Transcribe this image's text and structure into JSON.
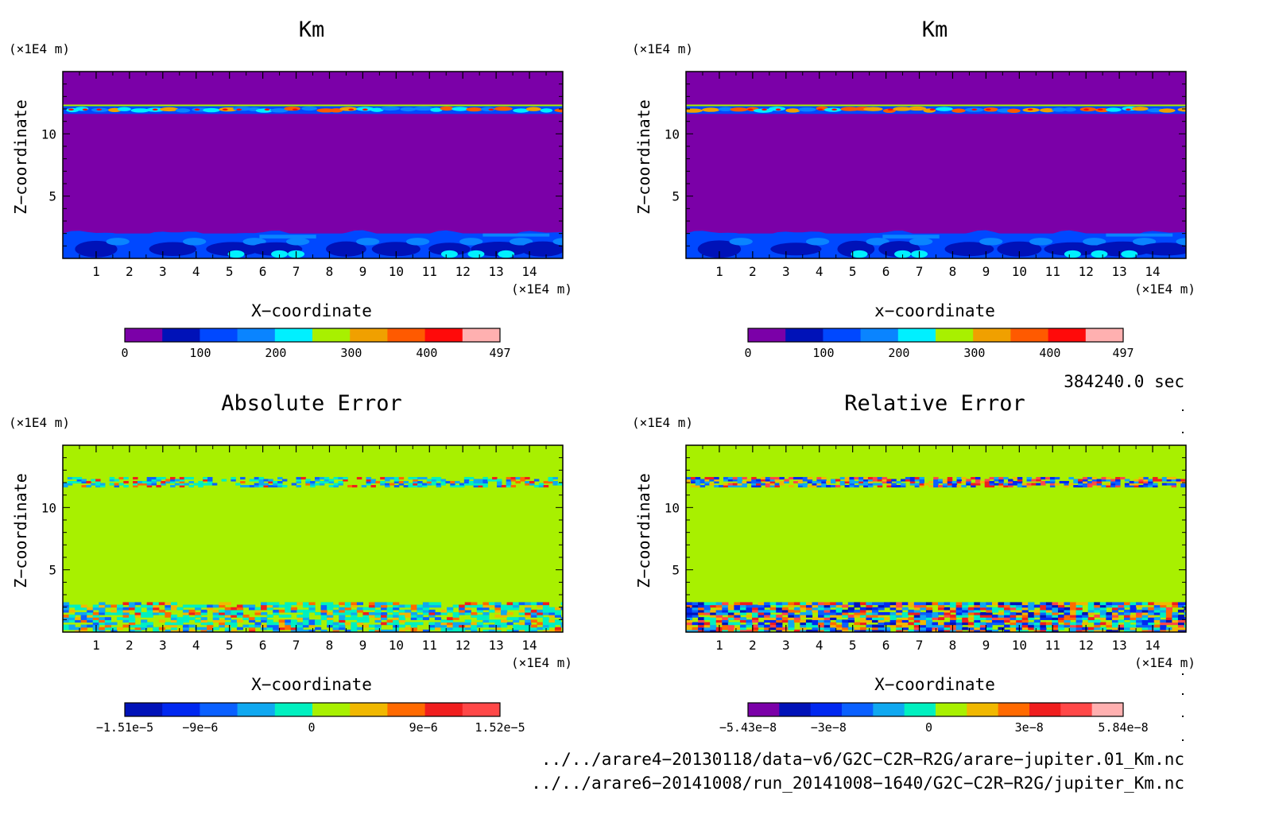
{
  "panels": [
    {
      "title": "Km",
      "xlabel": "X−coordinate",
      "ylabel": "Z−coordinate",
      "x_unit": "(×1E4 m)",
      "y_unit": "(×1E4 m)",
      "colorbar": {
        "colors": [
          "#7b00a8",
          "#0012b8",
          "#0048ff",
          "#0a84ff",
          "#00f0ff",
          "#a8f000",
          "#f0a000",
          "#ff5a00",
          "#ff0a0a",
          "#ffb0b0"
        ],
        "tick_labels": [
          {
            "text": "0",
            "pos": 0.0
          },
          {
            "text": "100",
            "pos": 0.2012
          },
          {
            "text": "200",
            "pos": 0.4024
          },
          {
            "text": "300",
            "pos": 0.6036
          },
          {
            "text": "400",
            "pos": 0.8048
          },
          {
            "text": "497",
            "pos": 1.0
          }
        ]
      }
    },
    {
      "title": "Km",
      "xlabel": "x−coordinate",
      "ylabel": "Z−coordinate",
      "x_unit": "(×1E4 m)",
      "y_unit": "(×1E4 m)",
      "colorbar": {
        "colors": [
          "#7b00a8",
          "#0012b8",
          "#0048ff",
          "#0a84ff",
          "#00f0ff",
          "#a8f000",
          "#f0a000",
          "#ff5a00",
          "#ff0a0a",
          "#ffb0b0"
        ],
        "tick_labels": [
          {
            "text": "0",
            "pos": 0.0
          },
          {
            "text": "100",
            "pos": 0.2012
          },
          {
            "text": "200",
            "pos": 0.4024
          },
          {
            "text": "300",
            "pos": 0.6036
          },
          {
            "text": "400",
            "pos": 0.8048
          },
          {
            "text": "497",
            "pos": 1.0
          }
        ]
      }
    },
    {
      "title": "Absolute Error",
      "xlabel": "X−coordinate",
      "ylabel": "Z−coordinate",
      "x_unit": "(×1E4 m)",
      "y_unit": "(×1E4 m)",
      "colorbar": {
        "colors": [
          "#0012b8",
          "#0028f0",
          "#0a60ff",
          "#10a8f0",
          "#00f0c0",
          "#a8f000",
          "#f0b800",
          "#ff6a00",
          "#f01e1e",
          "#ff4848"
        ],
        "tick_labels": [
          {
            "text": "−1.51e−5",
            "pos": 0.0
          },
          {
            "text": "−9e−6",
            "pos": 0.201
          },
          {
            "text": "0",
            "pos": 0.498
          },
          {
            "text": "9e−6",
            "pos": 0.796
          },
          {
            "text": "1.52e−5",
            "pos": 1.0
          }
        ]
      }
    },
    {
      "title": "Relative Error",
      "xlabel": "X−coordinate",
      "ylabel": "Z−coordinate",
      "x_unit": "(×1E4 m)",
      "y_unit": "(×1E4 m)",
      "colorbar": {
        "colors": [
          "#7b00a8",
          "#0012b8",
          "#0028f0",
          "#0a60ff",
          "#10a8f0",
          "#00f0c0",
          "#a8f000",
          "#f0b800",
          "#ff6a00",
          "#f01e1e",
          "#ff4848",
          "#ffb0b0"
        ],
        "tick_labels": [
          {
            "text": "−5.43e−8",
            "pos": 0.0
          },
          {
            "text": "−3e−8",
            "pos": 0.2147
          },
          {
            "text": "0",
            "pos": 0.4821
          },
          {
            "text": "3e−8",
            "pos": 0.7494
          },
          {
            "text": "5.84e−8",
            "pos": 1.0
          }
        ]
      }
    }
  ],
  "time_label": "384240.0 sec",
  "file_paths": [
    "../../arare4−20130118/data−v6/G2C−C2R−R2G/arare−jupiter.01_Km.nc",
    "../../arare6−20141008/run_20141008−1640/G2C−C2R−R2G/jupiter_Km.nc"
  ],
  "chart_data": [
    {
      "type": "heatmap",
      "title": "Km",
      "xlabel": "X−coordinate",
      "ylabel": "Z−coordinate",
      "x_unit": "×1E4 m",
      "y_unit": "×1E4 m",
      "xlim": [
        0,
        15
      ],
      "ylim": [
        0,
        15
      ],
      "x_ticks": [
        1,
        2,
        3,
        4,
        5,
        6,
        7,
        8,
        9,
        10,
        11,
        12,
        13,
        14
      ],
      "y_ticks": [
        5,
        10
      ],
      "colorbar_levels": [
        0,
        100,
        200,
        300,
        400,
        497
      ],
      "field_summary": {
        "interior": {
          "z_range": [
            2,
            11.6
          ],
          "value": 0
        },
        "top_band": {
          "z_range": [
            11.6,
            12.3
          ],
          "value_range": [
            0,
            497
          ]
        },
        "bottom_band": {
          "z_range": [
            0,
            2
          ],
          "value_range": [
            50,
            250
          ]
        },
        "above_top_band": {
          "z_range": [
            12.3,
            15
          ],
          "value": 0
        }
      }
    },
    {
      "type": "heatmap",
      "title": "Km",
      "xlabel": "x−coordinate",
      "ylabel": "Z−coordinate",
      "x_unit": "×1E4 m",
      "y_unit": "×1E4 m",
      "xlim": [
        0,
        15
      ],
      "ylim": [
        0,
        15
      ],
      "x_ticks": [
        1,
        2,
        3,
        4,
        5,
        6,
        7,
        8,
        9,
        10,
        11,
        12,
        13,
        14
      ],
      "y_ticks": [
        5,
        10
      ],
      "colorbar_levels": [
        0,
        100,
        200,
        300,
        400,
        497
      ],
      "field_summary": {
        "interior": {
          "z_range": [
            2,
            11.6
          ],
          "value": 0
        },
        "top_band": {
          "z_range": [
            11.6,
            12.3
          ],
          "value_range": [
            0,
            497
          ]
        },
        "bottom_band": {
          "z_range": [
            0,
            2
          ],
          "value_range": [
            50,
            250
          ]
        },
        "above_top_band": {
          "z_range": [
            12.3,
            15
          ],
          "value": 0
        }
      }
    },
    {
      "type": "heatmap",
      "title": "Absolute Error",
      "xlabel": "X−coordinate",
      "ylabel": "Z−coordinate",
      "x_unit": "×1E4 m",
      "y_unit": "×1E4 m",
      "xlim": [
        0,
        15
      ],
      "ylim": [
        0,
        15
      ],
      "x_ticks": [
        1,
        2,
        3,
        4,
        5,
        6,
        7,
        8,
        9,
        10,
        11,
        12,
        13,
        14
      ],
      "y_ticks": [
        5,
        10
      ],
      "colorbar_levels": [
        -1.51e-05,
        -9e-06,
        0,
        9e-06,
        1.52e-05
      ],
      "field_summary": {
        "interior": {
          "z_range": [
            2.2,
            11.6
          ],
          "value": 0
        },
        "top_band": {
          "z_range": [
            11.6,
            12.3
          ],
          "value_range": [
            -1.51e-05,
            1.52e-05
          ]
        },
        "bottom_band": {
          "z_range": [
            0,
            2.2
          ],
          "value_range": [
            -9e-06,
            9e-06
          ]
        }
      }
    },
    {
      "type": "heatmap",
      "title": "Relative Error",
      "xlabel": "X−coordinate",
      "ylabel": "Z−coordinate",
      "x_unit": "×1E4 m",
      "y_unit": "×1E4 m",
      "xlim": [
        0,
        15
      ],
      "ylim": [
        0,
        15
      ],
      "x_ticks": [
        1,
        2,
        3,
        4,
        5,
        6,
        7,
        8,
        9,
        10,
        11,
        12,
        13,
        14
      ],
      "y_ticks": [
        5,
        10
      ],
      "colorbar_levels": [
        -5.43e-08,
        -3e-08,
        0,
        3e-08,
        5.84e-08
      ],
      "field_summary": {
        "interior": {
          "z_range": [
            2.2,
            11.6
          ],
          "value": 0
        },
        "top_band": {
          "z_range": [
            11.6,
            12.3
          ],
          "value_range": [
            -5.43e-08,
            5.84e-08
          ]
        },
        "bottom_band": {
          "z_range": [
            0,
            2.2
          ],
          "value_range": [
            -5.43e-08,
            5.84e-08
          ]
        }
      }
    }
  ]
}
